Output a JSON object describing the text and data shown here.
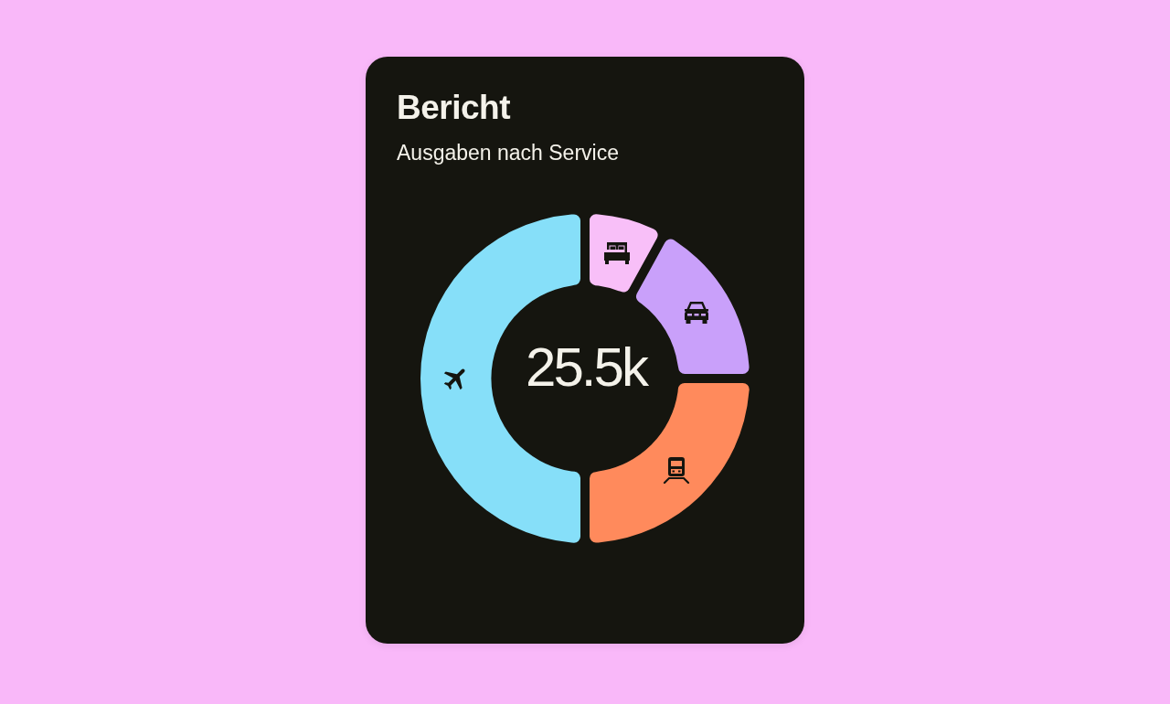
{
  "chart_data": {
    "type": "donut",
    "title": "Bericht",
    "subtitle": "Ausgaben nach Service",
    "categories": [
      null,
      null,
      null,
      null
    ],
    "values": [
      8,
      17,
      25,
      50
    ],
    "colors": [
      "#f8bff8",
      "#c9a0fa",
      "#ff8a5c",
      "#86dff9"
    ],
    "annotations": [
      "25.5k"
    ]
  }
}
